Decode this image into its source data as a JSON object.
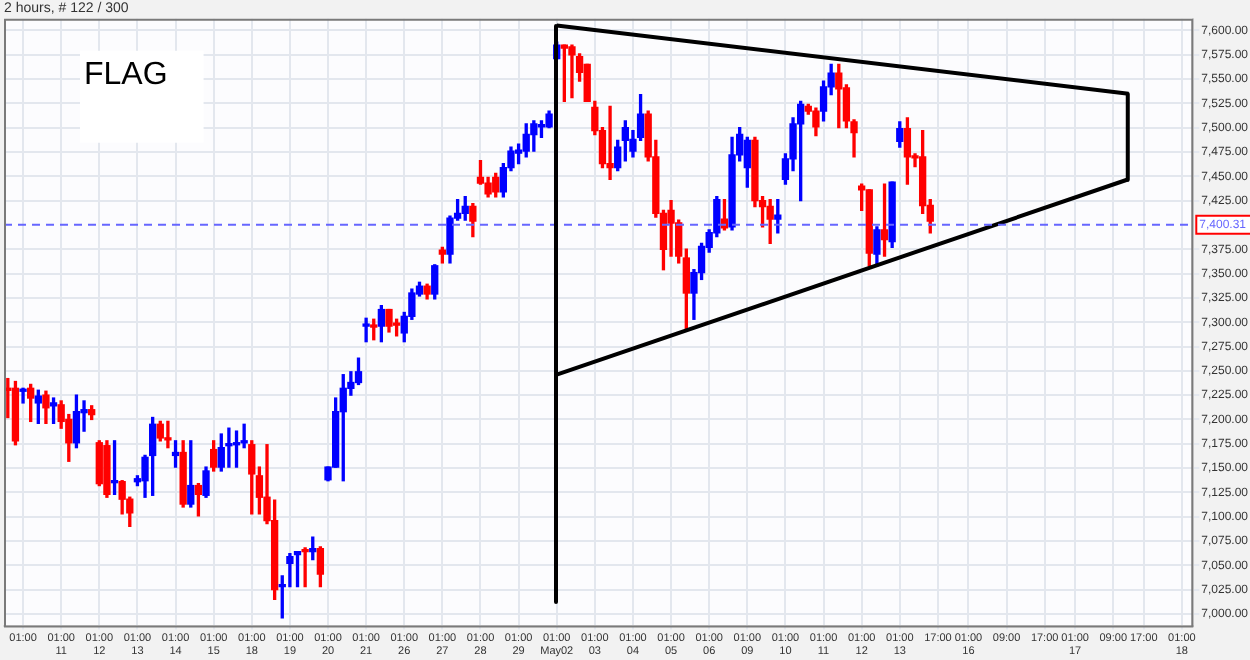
{
  "chart_data": {
    "type": "candlestick",
    "title": "2 hours, # 122 / 300",
    "annotations": [
      "FLAG"
    ],
    "categories": [
      null,
      null,
      "01:00",
      null,
      null,
      null,
      null,
      "01:00\n11",
      null,
      null,
      null,
      null,
      "01:00\n12",
      null,
      null,
      null,
      null,
      "01:00\n13",
      null,
      null,
      null,
      null,
      "01:00\n14",
      null,
      null,
      null,
      null,
      "01:00\n15",
      null,
      null,
      null,
      null,
      "01:00\n18",
      null,
      null,
      null,
      null,
      "01:00\n19",
      null,
      null,
      null,
      null,
      "01:00\n20",
      null,
      null,
      null,
      null,
      "01:00\n21",
      null,
      null,
      null,
      null,
      "01:00\n26",
      null,
      null,
      null,
      null,
      "01:00\n27",
      null,
      null,
      null,
      null,
      "01:00\n28",
      null,
      null,
      null,
      null,
      "01:00\n29",
      null,
      null,
      null,
      null,
      "01:00\nMay02",
      null,
      null,
      null,
      null,
      "01:00\n03",
      null,
      null,
      null,
      null,
      "01:00\n04",
      null,
      null,
      null,
      null,
      "01:00\n05",
      null,
      null,
      null,
      null,
      "01:00\n06",
      null,
      null,
      null,
      null,
      "01:00\n09",
      null,
      null,
      null,
      null,
      "01:00\n10",
      null,
      null,
      null,
      null,
      "01:00\n11",
      null,
      null,
      null,
      null,
      "01:00\n12",
      null,
      null,
      null,
      null,
      "01:00\n13",
      null,
      null,
      null,
      null,
      "17:00",
      null,
      null,
      null,
      "01:00\n16",
      null,
      null,
      null,
      null,
      "09:00",
      null,
      null,
      null,
      null,
      "17:00",
      null,
      null,
      null,
      "01:00\n17",
      null,
      null,
      null,
      null,
      "09:00",
      null,
      null,
      null,
      "17:00",
      null,
      null,
      null,
      null,
      "01:00\n18",
      null
    ],
    "ohlc": [
      [
        7232,
        7242,
        7202,
        7230
      ],
      [
        7232,
        7239,
        7174,
        7178
      ],
      [
        7229,
        7232,
        7217,
        7231
      ],
      [
        7232,
        7236,
        7198,
        7222
      ],
      [
        7217,
        7230,
        7196,
        7224
      ],
      [
        7225,
        7229,
        7196,
        7212
      ],
      [
        7214,
        7222,
        7196,
        7217
      ],
      [
        7215,
        7219,
        7191,
        7198
      ],
      [
        7200,
        7205,
        7157,
        7176
      ],
      [
        7176,
        7225,
        7171,
        7208
      ],
      [
        7207,
        7219,
        7188,
        7210
      ],
      [
        7210,
        7214,
        7200,
        7205
      ],
      [
        7176,
        7178,
        7132,
        7134
      ],
      [
        7173,
        7178,
        7120,
        7123
      ],
      [
        7135,
        7178,
        7123,
        7137
      ],
      [
        7136,
        7137,
        7103,
        7118
      ],
      [
        7118,
        7120,
        7090,
        7104
      ],
      [
        7136,
        7142,
        7132,
        7139
      ],
      [
        7137,
        7163,
        7120,
        7161
      ],
      [
        7163,
        7202,
        7122,
        7195
      ],
      [
        7195,
        7198,
        7178,
        7181
      ],
      [
        7181,
        7198,
        7171,
        7179
      ],
      [
        7163,
        7178,
        7151,
        7166
      ],
      [
        7166,
        7178,
        7110,
        7113
      ],
      [
        7113,
        7178,
        7110,
        7132
      ],
      [
        7132,
        7134,
        7101,
        7123
      ],
      [
        7122,
        7151,
        7120,
        7147
      ],
      [
        7169,
        7178,
        7147,
        7151
      ],
      [
        7151,
        7185,
        7147,
        7171
      ],
      [
        7173,
        7191,
        7151,
        7174
      ],
      [
        7174,
        7188,
        7151,
        7176
      ],
      [
        7176,
        7195,
        7171,
        7178
      ],
      [
        7174,
        7178,
        7103,
        7144
      ],
      [
        7142,
        7151,
        7103,
        7120
      ],
      [
        7120,
        7174,
        7093,
        7096
      ],
      [
        7096,
        7117,
        7015,
        7025
      ],
      [
        7028,
        7039,
        6996,
        7030
      ],
      [
        7052,
        7062,
        7028,
        7059
      ],
      [
        7061,
        7064,
        7028,
        7064
      ],
      [
        7065,
        7068,
        7028,
        7064
      ],
      [
        7064,
        7079,
        7056,
        7067
      ],
      [
        7067,
        7069,
        7028,
        7041
      ],
      [
        7138,
        7151,
        7137,
        7151
      ],
      [
        7151,
        7222,
        7151,
        7208
      ],
      [
        7208,
        7246,
        7137,
        7232
      ],
      [
        7232,
        7249,
        7225,
        7238
      ],
      [
        7238,
        7263,
        7236,
        7249
      ],
      [
        7296,
        7304,
        7280,
        7297
      ],
      [
        7297,
        7303,
        7282,
        7295
      ],
      [
        7296,
        7317,
        7280,
        7313
      ],
      [
        7313,
        7313,
        7290,
        7296
      ],
      [
        7298,
        7303,
        7286,
        7297
      ],
      [
        7289,
        7310,
        7280,
        7306
      ],
      [
        7306,
        7334,
        7303,
        7330
      ],
      [
        7329,
        7341,
        7327,
        7337
      ],
      [
        7337,
        7339,
        7324,
        7329
      ],
      [
        7329,
        7359,
        7324,
        7358
      ],
      [
        7374,
        7377,
        7361,
        7370
      ],
      [
        7370,
        7409,
        7361,
        7407
      ],
      [
        7407,
        7426,
        7405,
        7412
      ],
      [
        7412,
        7429,
        7405,
        7419
      ],
      [
        7419,
        7422,
        7388,
        7404
      ],
      [
        7449,
        7466,
        7442,
        7443
      ],
      [
        7443,
        7449,
        7429,
        7432
      ],
      [
        7449,
        7453,
        7429,
        7434
      ],
      [
        7434,
        7463,
        7429,
        7459
      ],
      [
        7459,
        7480,
        7456,
        7476
      ],
      [
        7474,
        7483,
        7463,
        7477
      ],
      [
        7476,
        7504,
        7470,
        7493
      ],
      [
        7493,
        7507,
        7476,
        7504
      ],
      [
        7501,
        7507,
        7490,
        7502
      ],
      [
        7501,
        7517,
        7500,
        7514
      ],
      [
        7571,
        7588,
        7571,
        7585
      ],
      [
        7585,
        7585,
        7527,
        7582
      ],
      [
        7583,
        7585,
        7531,
        7575
      ],
      [
        7573,
        7576,
        7548,
        7557
      ],
      [
        7565,
        7565,
        7527,
        7527
      ],
      [
        7521,
        7527,
        7493,
        7497
      ],
      [
        7497,
        7500,
        7459,
        7463
      ],
      [
        7463,
        7522,
        7447,
        7459
      ],
      [
        7459,
        7487,
        7456,
        7480
      ],
      [
        7487,
        7507,
        7466,
        7500
      ],
      [
        7476,
        7497,
        7470,
        7488
      ],
      [
        7490,
        7534,
        7487,
        7514
      ],
      [
        7514,
        7517,
        7466,
        7470
      ],
      [
        7470,
        7487,
        7408,
        7412
      ],
      [
        7412,
        7415,
        7354,
        7375
      ],
      [
        7415,
        7425,
        7368,
        7402
      ],
      [
        7402,
        7405,
        7361,
        7368
      ],
      [
        7366,
        7375,
        7293,
        7330
      ],
      [
        7330,
        7354,
        7303,
        7351
      ],
      [
        7351,
        7381,
        7344,
        7378
      ],
      [
        7377,
        7395,
        7372,
        7392
      ],
      [
        7392,
        7429,
        7388,
        7426
      ],
      [
        7406,
        7426,
        7395,
        7397
      ],
      [
        7398,
        7490,
        7395,
        7472
      ],
      [
        7472,
        7500,
        7466,
        7493
      ],
      [
        7459,
        7490,
        7439,
        7487
      ],
      [
        7487,
        7490,
        7419,
        7425
      ],
      [
        7425,
        7429,
        7398,
        7419
      ],
      [
        7419,
        7426,
        7381,
        7406
      ],
      [
        7406,
        7426,
        7392,
        7410
      ],
      [
        7447,
        7473,
        7442,
        7468
      ],
      [
        7468,
        7510,
        7456,
        7504
      ],
      [
        7504,
        7527,
        7425,
        7524
      ],
      [
        7522,
        7524,
        7514,
        7517
      ],
      [
        7517,
        7520,
        7492,
        7501
      ],
      [
        7517,
        7548,
        7507,
        7542
      ],
      [
        7542,
        7565,
        7534,
        7556
      ],
      [
        7556,
        7565,
        7500,
        7540
      ],
      [
        7541,
        7544,
        7500,
        7507
      ],
      [
        7506,
        7508,
        7470,
        7495
      ],
      [
        7440,
        7442,
        7415,
        7436
      ],
      [
        7436,
        7436,
        7358,
        7371
      ],
      [
        7370,
        7398,
        7358,
        7395
      ],
      [
        7395,
        7442,
        7368,
        7385
      ],
      [
        7383,
        7444,
        7377,
        7444
      ],
      [
        7486,
        7506,
        7480,
        7499
      ],
      [
        7499,
        7510,
        7442,
        7470
      ],
      [
        7470,
        7473,
        7460,
        7469
      ],
      [
        7470,
        7497,
        7412,
        7420
      ],
      [
        7420,
        7426,
        7392,
        7404
      ],
      null,
      null,
      null,
      null,
      null,
      null,
      null,
      null,
      null,
      null,
      null,
      null,
      null,
      null,
      null,
      null,
      null,
      null,
      null,
      null,
      null,
      null,
      null,
      null,
      null,
      null,
      null,
      null,
      null,
      null,
      null,
      null,
      null,
      null
    ],
    "colors": [
      "#ff0000",
      "#ff0000",
      "#0000ff",
      "#ff0000",
      "#0000ff",
      "#ff0000",
      "#0000ff",
      "#ff0000",
      "#ff0000",
      "#0000ff",
      "#0000ff",
      "#ff0000",
      "#ff0000",
      "#ff0000",
      "#0000ff",
      "#ff0000",
      "#ff0000",
      "#0000ff",
      "#0000ff",
      "#0000ff",
      "#ff0000",
      "#ff0000",
      "#0000ff",
      "#ff0000",
      "#0000ff",
      "#ff0000",
      "#0000ff",
      "#ff0000",
      "#0000ff",
      "#0000ff",
      "#0000ff",
      "#0000ff",
      "#ff0000",
      "#ff0000",
      "#ff0000",
      "#ff0000",
      "#0000ff",
      "#0000ff",
      "#0000ff",
      "#ff0000",
      "#0000ff",
      "#ff0000",
      "#0000ff",
      "#0000ff",
      "#0000ff",
      "#0000ff",
      "#0000ff",
      "#0000ff",
      "#ff0000",
      "#0000ff",
      "#ff0000",
      "#ff0000",
      "#0000ff",
      "#0000ff",
      "#0000ff",
      "#ff0000",
      "#0000ff",
      "#ff0000",
      "#0000ff",
      "#0000ff",
      "#0000ff",
      "#ff0000",
      "#ff0000",
      "#ff0000",
      "#ff0000",
      "#0000ff",
      "#0000ff",
      "#0000ff",
      "#0000ff",
      "#0000ff",
      "#0000ff",
      "#0000ff",
      "#0000ff",
      "#ff0000",
      "#ff0000",
      "#ff0000",
      "#ff0000",
      "#ff0000",
      "#ff0000",
      "#ff0000",
      "#0000ff",
      "#0000ff",
      "#0000ff",
      "#0000ff",
      "#ff0000",
      "#ff0000",
      "#ff0000",
      "#ff0000",
      "#ff0000",
      "#ff0000",
      "#0000ff",
      "#0000ff",
      "#0000ff",
      "#0000ff",
      "#ff0000",
      "#0000ff",
      "#0000ff",
      "#0000ff",
      "#ff0000",
      "#ff0000",
      "#ff0000",
      "#0000ff",
      "#0000ff",
      "#0000ff",
      "#0000ff",
      "#ff0000",
      "#ff0000",
      "#0000ff",
      "#0000ff",
      "#ff0000",
      "#ff0000",
      "#ff0000",
      "#ff0000",
      "#ff0000",
      "#0000ff",
      "#ff0000",
      "#0000ff",
      "#0000ff",
      "#ff0000",
      "#ff0000",
      "#ff0000",
      "#ff0000",
      null,
      null,
      null,
      null,
      null,
      null,
      null,
      null,
      null,
      null,
      null,
      null,
      null,
      null,
      null,
      null,
      null,
      null,
      null,
      null,
      null,
      null,
      null,
      null,
      null,
      null,
      null,
      null,
      null,
      null,
      null,
      null,
      null,
      null
    ],
    "ylim": [
      6988,
      7612
    ],
    "yticks": [
      {
        "value": 7000,
        "label": "7,000.00"
      },
      {
        "value": 7025,
        "label": "7,025.00"
      },
      {
        "value": 7050,
        "label": "7,050.00"
      },
      {
        "value": 7075,
        "label": "7,075.00"
      },
      {
        "value": 7100,
        "label": "7,100.00"
      },
      {
        "value": 7125,
        "label": "7,125.00"
      },
      {
        "value": 7150,
        "label": "7,150.00"
      },
      {
        "value": 7175,
        "label": "7,175.00"
      },
      {
        "value": 7200,
        "label": "7,200.00"
      },
      {
        "value": 7225,
        "label": "7,225.00"
      },
      {
        "value": 7250,
        "label": "7,250.00"
      },
      {
        "value": 7275,
        "label": "7,275.00"
      },
      {
        "value": 7300,
        "label": "7,300.00"
      },
      {
        "value": 7325,
        "label": "7,325.00"
      },
      {
        "value": 7350,
        "label": "7,350.00"
      },
      {
        "value": 7375,
        "label": "7,375.00"
      },
      {
        "value": 7425,
        "label": "7,425.00"
      },
      {
        "value": 7450,
        "label": "7,450.00"
      },
      {
        "value": 7475,
        "label": "7,475.00"
      },
      {
        "value": 7500,
        "label": "7,500.00"
      },
      {
        "value": 7525,
        "label": "7,525.00"
      },
      {
        "value": 7550,
        "label": "7,550.00"
      },
      {
        "value": 7575,
        "label": "7,575.00"
      },
      {
        "value": 7600,
        "label": "7,600.00"
      }
    ],
    "ref_lines": [
      {
        "axis": "y",
        "value": 7400.31,
        "label": "7,400.31",
        "color": "#6666ff",
        "line_style": "dashed"
      }
    ],
    "series": [
      {
        "type": "line",
        "color": "#000000",
        "marker": "none",
        "values": [
          null,
          null,
          null,
          null,
          null,
          null,
          null,
          null,
          null,
          null,
          null,
          null,
          null,
          null,
          null,
          null,
          null,
          null,
          null,
          null,
          null,
          null,
          null,
          null,
          null,
          null,
          null,
          null,
          null,
          null,
          null,
          null,
          null,
          null,
          null,
          null,
          null,
          null,
          null,
          null,
          null,
          null,
          null,
          null,
          null,
          null,
          null,
          null,
          null,
          null,
          null,
          null,
          null,
          null,
          null,
          null,
          null,
          null,
          null,
          null,
          null,
          null,
          null,
          null,
          null,
          null,
          null,
          null,
          null,
          null,
          null,
          null,
          7605,
          null,
          null,
          null,
          null,
          null,
          null,
          null,
          null,
          null,
          null,
          null,
          null,
          null,
          null,
          null,
          null,
          null,
          null,
          null,
          null,
          null,
          null,
          null,
          null,
          null,
          null,
          null,
          null,
          null,
          null,
          null,
          null,
          null,
          null,
          null,
          null,
          null,
          null,
          null,
          null,
          null,
          null,
          null,
          null,
          null,
          null,
          null,
          null,
          null,
          null,
          null,
          null,
          null,
          null,
          null,
          null,
          null,
          null,
          null,
          null,
          null,
          null,
          null,
          null,
          null,
          null,
          null,
          null,
          null,
          null,
          null,
          null,
          null,
          null,
          7535,
          null,
          null,
          null,
          null,
          null,
          null,
          null,
          null
        ]
      },
      {
        "type": "line",
        "color": "#000000",
        "marker": "none",
        "values": [
          null,
          null,
          null,
          null,
          null,
          null,
          null,
          null,
          null,
          null,
          null,
          null,
          null,
          null,
          null,
          null,
          null,
          null,
          null,
          null,
          null,
          null,
          null,
          null,
          null,
          null,
          null,
          null,
          null,
          null,
          null,
          null,
          null,
          null,
          null,
          null,
          null,
          null,
          null,
          null,
          null,
          null,
          null,
          null,
          null,
          null,
          null,
          null,
          null,
          null,
          null,
          null,
          null,
          null,
          null,
          null,
          null,
          null,
          null,
          null,
          null,
          null,
          null,
          null,
          null,
          null,
          null,
          null,
          null,
          null,
          null,
          null,
          7246,
          null,
          null,
          null,
          null,
          null,
          null,
          null,
          null,
          null,
          null,
          null,
          null,
          null,
          null,
          null,
          null,
          null,
          null,
          null,
          null,
          null,
          null,
          null,
          null,
          null,
          null,
          null,
          null,
          null,
          null,
          null,
          null,
          null,
          null,
          null,
          null,
          null,
          null,
          null,
          null,
          null,
          null,
          null,
          null,
          null,
          null,
          null,
          null,
          null,
          null,
          null,
          null,
          null,
          null,
          null,
          null,
          null,
          null,
          null,
          null,
          null,
          null,
          null,
          null,
          null,
          null,
          null,
          null,
          null,
          null,
          null,
          null,
          null,
          null,
          7447,
          null,
          null,
          null,
          null,
          null,
          null,
          null,
          null
        ]
      }
    ],
    "grid": true,
    "legend": false
  }
}
